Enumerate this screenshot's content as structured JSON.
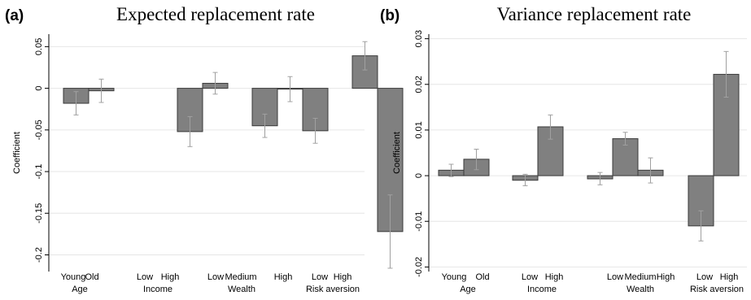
{
  "chart_data": [
    {
      "type": "bar",
      "panel": "(a)",
      "title": "Expected replacement rate",
      "ylabel": "Coefficient",
      "xlabel": "",
      "ylim": [
        -0.22,
        0.065
      ],
      "yticks": [
        -0.2,
        -0.15,
        -0.1,
        -0.05,
        0,
        0.05
      ],
      "ytick_labels": [
        "-0.2",
        "-0.15",
        "-0.1",
        "-0.05",
        "0",
        "0.05"
      ],
      "grid": true,
      "groups": [
        {
          "label": "Age",
          "bars": [
            {
              "category": "Young",
              "value": -0.018,
              "ci": [
                -0.032,
                -0.004
              ]
            },
            {
              "category": "Old",
              "value": -0.003,
              "ci": [
                -0.017,
                0.011
              ]
            }
          ]
        },
        {
          "label": "Income",
          "bars": [
            {
              "category": "Low",
              "value": -0.052,
              "ci": [
                -0.07,
                -0.034
              ]
            },
            {
              "category": "High",
              "value": 0.006,
              "ci": [
                -0.007,
                0.019
              ]
            }
          ]
        },
        {
          "label": "Wealth",
          "bars": [
            {
              "category": "Low",
              "value": -0.045,
              "ci": [
                -0.059,
                -0.031
              ]
            },
            {
              "category": "Medium",
              "value": -0.001,
              "ci": [
                -0.016,
                0.014
              ]
            },
            {
              "category": "High",
              "value": -0.051,
              "ci": [
                -0.066,
                -0.036
              ]
            }
          ]
        },
        {
          "label": "Risk aversion",
          "bars": [
            {
              "category": "Low",
              "value": 0.039,
              "ci": [
                0.022,
                0.056
              ]
            },
            {
              "category": "High",
              "value": -0.172,
              "ci": [
                -0.216,
                -0.128
              ]
            }
          ]
        }
      ]
    },
    {
      "type": "bar",
      "panel": "(b)",
      "title": "Variance replacement rate",
      "ylabel": "Coefficient",
      "xlabel": "",
      "ylim": [
        -0.021,
        0.031
      ],
      "yticks": [
        -0.02,
        -0.01,
        0,
        0.01,
        0.02,
        0.03
      ],
      "ytick_labels": [
        "-0.02",
        "-0.01",
        "0",
        "0.01",
        "0.02",
        "0.03"
      ],
      "grid": true,
      "groups": [
        {
          "label": "Age",
          "bars": [
            {
              "category": "Young",
              "value": 0.0012,
              "ci": [
                -0.0002,
                0.0025
              ]
            },
            {
              "category": "Old",
              "value": 0.0036,
              "ci": [
                0.0013,
                0.0058
              ]
            }
          ]
        },
        {
          "label": "Income",
          "bars": [
            {
              "category": "Low",
              "value": -0.001,
              "ci": [
                -0.0022,
                0.0003
              ]
            },
            {
              "category": "High",
              "value": 0.0107,
              "ci": [
                0.008,
                0.0133
              ]
            }
          ]
        },
        {
          "label": "Wealth",
          "bars": [
            {
              "category": "Low",
              "value": -0.0007,
              "ci": [
                -0.002,
                0.0007
              ]
            },
            {
              "category": "Medium",
              "value": 0.0081,
              "ci": [
                0.0067,
                0.0095
              ]
            },
            {
              "category": "High",
              "value": 0.0012,
              "ci": [
                -0.0016,
                0.0039
              ]
            }
          ]
        },
        {
          "label": "Risk aversion",
          "bars": [
            {
              "category": "Low",
              "value": -0.011,
              "ci": [
                -0.0143,
                -0.0077
              ]
            },
            {
              "category": "High",
              "value": 0.0222,
              "ci": [
                0.0172,
                0.0272
              ]
            }
          ]
        }
      ]
    }
  ]
}
